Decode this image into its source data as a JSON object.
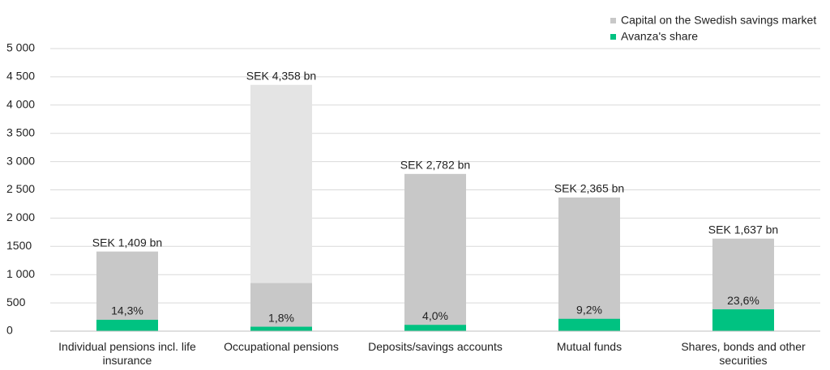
{
  "chart_data": {
    "type": "bar",
    "categories": [
      "Individual pensions incl. life insurance",
      "Occupational pensions",
      "Deposits/savings accounts",
      "Mutual funds",
      "Shares, bonds and other securities"
    ],
    "series": [
      {
        "name": "Capital on the Swedish savings market",
        "color": "#c8c8c8",
        "values": [
          1409,
          4358,
          2782,
          2365,
          1637
        ],
        "value_labels": [
          "SEK 1,409 bn",
          "SEK 4,358 bn",
          "SEK 2,782 bn",
          "SEK 2,365 bn",
          "SEK 1,637 bn"
        ],
        "light_color": "#e4e4e4",
        "shaded_values": [
          null,
          850,
          null,
          null,
          null
        ]
      },
      {
        "name": "Avanza's share",
        "color": "#00c281",
        "values": [
          201,
          78,
          111,
          218,
          386
        ],
        "share_percent": [
          14.3,
          1.8,
          4.0,
          9.2,
          23.6
        ],
        "share_percent_labels": [
          "14,3%",
          "1,8%",
          "4,0%",
          "9,2%",
          "23,6%"
        ]
      }
    ],
    "ylim": [
      0,
      5000
    ],
    "yticks": [
      0,
      500,
      {
        "value": 1000,
        "label": "1 000"
      },
      {
        "value": 1500,
        "label": "1500"
      },
      {
        "value": 2000,
        "label": "2 000"
      },
      {
        "value": 2500,
        "label": "2 500"
      },
      {
        "value": 3000,
        "label": "3 000"
      },
      {
        "value": 3500,
        "label": "3 500"
      },
      {
        "value": 4000,
        "label": "4 000"
      },
      {
        "value": 4500,
        "label": "4 500"
      },
      {
        "value": 5000,
        "label": "5 000"
      }
    ],
    "grid": true,
    "legend": "top-right"
  }
}
